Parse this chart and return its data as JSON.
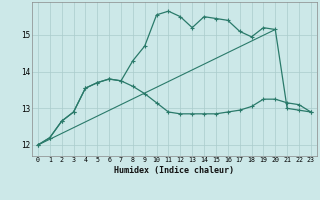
{
  "xlabel": "Humidex (Indice chaleur)",
  "ylabel": "",
  "bg_color": "#cce8e8",
  "grid_color": "#aacccc",
  "line_color": "#2a7a6a",
  "xlim": [
    -0.5,
    23.5
  ],
  "ylim": [
    11.7,
    15.9
  ],
  "yticks": [
    12,
    13,
    14,
    15
  ],
  "xticks": [
    0,
    1,
    2,
    3,
    4,
    5,
    6,
    7,
    8,
    9,
    10,
    11,
    12,
    13,
    14,
    15,
    16,
    17,
    18,
    19,
    20,
    21,
    22,
    23
  ],
  "series1_x": [
    0,
    1,
    2,
    3,
    4,
    5,
    6,
    7,
    8,
    9,
    10,
    11,
    12,
    13,
    14,
    15,
    16,
    17,
    18,
    19,
    20,
    21,
    22,
    23
  ],
  "series1_y": [
    12.0,
    12.2,
    12.65,
    12.9,
    13.55,
    13.7,
    13.8,
    13.75,
    13.6,
    13.4,
    13.15,
    12.9,
    12.85,
    12.85,
    12.85,
    12.85,
    12.9,
    12.95,
    13.05,
    13.25,
    13.25,
    13.15,
    13.1,
    12.9
  ],
  "series2_x": [
    0,
    1,
    2,
    3,
    4,
    5,
    6,
    7,
    8,
    9,
    10,
    11,
    12,
    13,
    14,
    15,
    16,
    17,
    18,
    19,
    20,
    21,
    22,
    23
  ],
  "series2_y": [
    12.0,
    12.2,
    12.65,
    12.9,
    13.55,
    13.7,
    13.8,
    13.75,
    14.3,
    14.7,
    15.55,
    15.65,
    15.5,
    15.2,
    15.5,
    15.45,
    15.4,
    15.1,
    14.95,
    15.2,
    15.15,
    13.0,
    12.95,
    12.9
  ],
  "series3_x": [
    0,
    20
  ],
  "series3_y": [
    12.0,
    15.15
  ]
}
